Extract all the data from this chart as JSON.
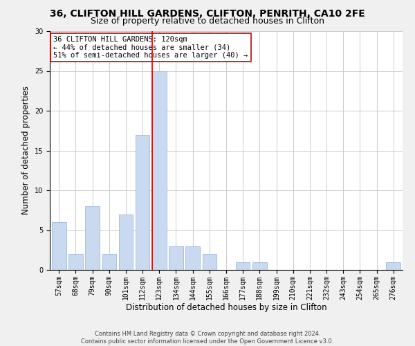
{
  "title_line1": "36, CLIFTON HILL GARDENS, CLIFTON, PENRITH, CA10 2FE",
  "title_line2": "Size of property relative to detached houses in Clifton",
  "xlabel": "Distribution of detached houses by size in Clifton",
  "ylabel": "Number of detached properties",
  "bin_labels": [
    "57sqm",
    "68sqm",
    "79sqm",
    "90sqm",
    "101sqm",
    "112sqm",
    "123sqm",
    "134sqm",
    "144sqm",
    "155sqm",
    "166sqm",
    "177sqm",
    "188sqm",
    "199sqm",
    "210sqm",
    "221sqm",
    "232sqm",
    "243sqm",
    "254sqm",
    "265sqm",
    "276sqm"
  ],
  "bar_heights": [
    6,
    2,
    8,
    2,
    7,
    17,
    25,
    3,
    3,
    2,
    0,
    1,
    1,
    0,
    0,
    0,
    0,
    0,
    0,
    0,
    1
  ],
  "bar_color": "#c9d9f0",
  "bar_edge_color": "#a0b8d8",
  "highlight_line_idx": 6,
  "highlight_color": "#cc0000",
  "ylim": [
    0,
    30
  ],
  "yticks": [
    0,
    5,
    10,
    15,
    20,
    25,
    30
  ],
  "annotation_line1": "36 CLIFTON HILL GARDENS: 120sqm",
  "annotation_line2": "← 44% of detached houses are smaller (34)",
  "annotation_line3": "51% of semi-detached houses are larger (40) →",
  "footer_line1": "Contains HM Land Registry data © Crown copyright and database right 2024.",
  "footer_line2": "Contains public sector information licensed under the Open Government Licence v3.0.",
  "bg_color": "#f0f0f0",
  "plot_bg_color": "#ffffff",
  "title_fontsize": 10,
  "subtitle_fontsize": 9,
  "axis_label_fontsize": 8.5,
  "tick_label_fontsize": 7,
  "annotation_fontsize": 7.5,
  "footer_fontsize": 6
}
